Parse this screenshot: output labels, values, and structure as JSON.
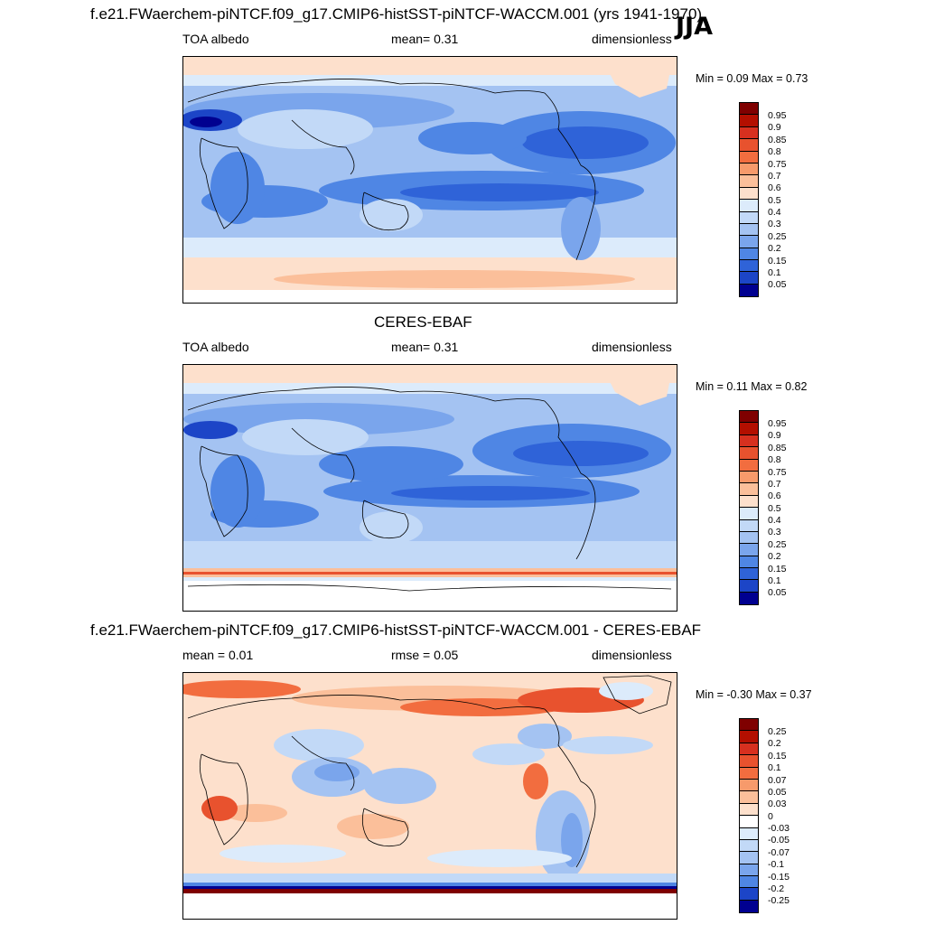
{
  "season": "JJA",
  "panels": [
    {
      "id": "model",
      "title": "f.e21.FWaerchem-piNTCF.f09_g17.CMIP6-histSST-piNTCF-WACCM.001 (yrs 1941-1970)",
      "left_label": "TOA albedo",
      "center_label": "mean=   0.31",
      "right_label": "dimensionless",
      "minmax": "Min =   0.09 Max =   0.73",
      "colorbar_labels": [
        "0.95",
        "0.9",
        "0.85",
        "0.8",
        "0.75",
        "0.7",
        "0.6",
        "0.5",
        "0.4",
        "0.3",
        "0.25",
        "0.2",
        "0.15",
        "0.1",
        "0.05"
      ],
      "colorbar_colors": [
        "#7f0000",
        "#b30f00",
        "#d7301f",
        "#e8522e",
        "#f26d3f",
        "#f79a6b",
        "#fbbf9a",
        "#fde0cc",
        "#dcebfb",
        "#c2d9f7",
        "#a4c3f2",
        "#7aa5ec",
        "#4f86e4",
        "#2f63d8",
        "#1c45c7",
        "#000090"
      ]
    },
    {
      "id": "obs",
      "title": "CERES-EBAF",
      "left_label": "TOA albedo",
      "center_label": "mean=   0.31",
      "right_label": "dimensionless",
      "minmax": "Min =   0.11 Max =   0.82",
      "colorbar_labels": [
        "0.95",
        "0.9",
        "0.85",
        "0.8",
        "0.75",
        "0.7",
        "0.6",
        "0.5",
        "0.4",
        "0.3",
        "0.25",
        "0.2",
        "0.15",
        "0.1",
        "0.05"
      ],
      "colorbar_colors": [
        "#7f0000",
        "#b30f00",
        "#d7301f",
        "#e8522e",
        "#f26d3f",
        "#f79a6b",
        "#fbbf9a",
        "#fde0cc",
        "#dcebfb",
        "#c2d9f7",
        "#a4c3f2",
        "#7aa5ec",
        "#4f86e4",
        "#2f63d8",
        "#1c45c7",
        "#000090"
      ]
    },
    {
      "id": "diff",
      "title": "f.e21.FWaerchem-piNTCF.f09_g17.CMIP6-histSST-piNTCF-WACCM.001 - CERES-EBAF",
      "left_label": "mean =   0.01",
      "center_label": "rmse =   0.05",
      "right_label": "dimensionless",
      "minmax": "Min = -0.30 Max =   0.37",
      "colorbar_labels": [
        "0.25",
        "0.2",
        "0.15",
        "0.1",
        "0.07",
        "0.05",
        "0.03",
        "0",
        "-0.03",
        "-0.05",
        "-0.07",
        "-0.1",
        "-0.15",
        "-0.2",
        "-0.25"
      ],
      "colorbar_colors": [
        "#7f0000",
        "#b30f00",
        "#d7301f",
        "#e8522e",
        "#f26d3f",
        "#f79a6b",
        "#fbbf9a",
        "#fde0cc",
        "#ffffff",
        "#dcebfb",
        "#c2d9f7",
        "#a4c3f2",
        "#7aa5ec",
        "#4f86e4",
        "#1c45c7",
        "#000090"
      ]
    }
  ]
}
